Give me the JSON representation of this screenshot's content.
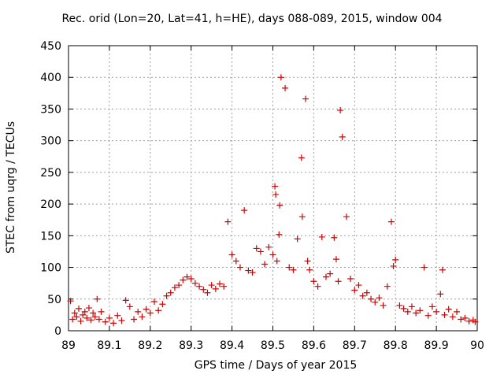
{
  "chart_data": {
    "type": "scatter",
    "title": "Rec. orid (Lon=20, Lat=41, h=HE), days 088-089, 2015, window 004",
    "xlabel": "GPS time / Days of year 2015",
    "ylabel": "STEC from uqrg / TECUs",
    "xlim": [
      89,
      90
    ],
    "ylim": [
      0,
      450
    ],
    "xticks": [
      "89",
      "89.1",
      "89.2",
      "89.3",
      "89.4",
      "89.5",
      "89.6",
      "89.7",
      "89.8",
      "89.9",
      "90"
    ],
    "yticks": [
      "0",
      "50",
      "100",
      "150",
      "200",
      "250",
      "300",
      "350",
      "400",
      "450"
    ],
    "xtick_values": [
      89,
      89.1,
      89.2,
      89.3,
      89.4,
      89.5,
      89.6,
      89.7,
      89.8,
      89.9,
      90
    ],
    "ytick_values": [
      0,
      50,
      100,
      150,
      200,
      250,
      300,
      350,
      400,
      450
    ],
    "grid": true,
    "marker": "+",
    "color": "#d40000",
    "series": [
      {
        "points": [
          [
            89.005,
            47
          ],
          [
            89.01,
            18
          ],
          [
            89.015,
            28
          ],
          [
            89.02,
            22
          ],
          [
            89.025,
            35
          ],
          [
            89.03,
            15
          ],
          [
            89.035,
            25
          ],
          [
            89.04,
            30
          ],
          [
            89.045,
            20
          ],
          [
            89.05,
            36
          ],
          [
            89.055,
            17
          ],
          [
            89.06,
            28
          ],
          [
            89.065,
            22
          ],
          [
            89.07,
            50
          ],
          [
            89.075,
            18
          ],
          [
            89.08,
            30
          ],
          [
            89.09,
            14
          ],
          [
            89.1,
            20
          ],
          [
            89.11,
            12
          ],
          [
            89.12,
            24
          ],
          [
            89.13,
            16
          ],
          [
            89.14,
            48
          ],
          [
            89.15,
            38
          ],
          [
            89.16,
            18
          ],
          [
            89.17,
            30
          ],
          [
            89.18,
            22
          ],
          [
            89.19,
            34
          ],
          [
            89.2,
            28
          ],
          [
            89.21,
            46
          ],
          [
            89.22,
            32
          ],
          [
            89.23,
            42
          ],
          [
            89.24,
            55
          ],
          [
            89.25,
            60
          ],
          [
            89.26,
            68
          ],
          [
            89.27,
            72
          ],
          [
            89.28,
            80
          ],
          [
            89.29,
            85
          ],
          [
            89.3,
            82
          ],
          [
            89.31,
            75
          ],
          [
            89.32,
            70
          ],
          [
            89.33,
            65
          ],
          [
            89.34,
            60
          ],
          [
            89.35,
            72
          ],
          [
            89.36,
            66
          ],
          [
            89.37,
            74
          ],
          [
            89.38,
            70
          ],
          [
            89.39,
            172
          ],
          [
            89.4,
            120
          ],
          [
            89.41,
            110
          ],
          [
            89.42,
            100
          ],
          [
            89.43,
            190
          ],
          [
            89.44,
            95
          ],
          [
            89.45,
            92
          ],
          [
            89.46,
            130
          ],
          [
            89.47,
            125
          ],
          [
            89.48,
            105
          ],
          [
            89.49,
            132
          ],
          [
            89.5,
            120
          ],
          [
            89.505,
            228
          ],
          [
            89.507,
            215
          ],
          [
            89.51,
            110
          ],
          [
            89.515,
            152
          ],
          [
            89.517,
            198
          ],
          [
            89.52,
            400
          ],
          [
            89.53,
            383
          ],
          [
            89.54,
            100
          ],
          [
            89.55,
            96
          ],
          [
            89.56,
            145
          ],
          [
            89.57,
            273
          ],
          [
            89.572,
            180
          ],
          [
            89.58,
            366
          ],
          [
            89.585,
            110
          ],
          [
            89.59,
            96
          ],
          [
            89.6,
            78
          ],
          [
            89.61,
            70
          ],
          [
            89.62,
            148
          ],
          [
            89.63,
            85
          ],
          [
            89.64,
            90
          ],
          [
            89.65,
            147
          ],
          [
            89.655,
            113
          ],
          [
            89.66,
            78
          ],
          [
            89.665,
            348
          ],
          [
            89.67,
            306
          ],
          [
            89.68,
            180
          ],
          [
            89.69,
            82
          ],
          [
            89.7,
            64
          ],
          [
            89.71,
            72
          ],
          [
            89.72,
            55
          ],
          [
            89.73,
            60
          ],
          [
            89.74,
            50
          ],
          [
            89.75,
            45
          ],
          [
            89.76,
            52
          ],
          [
            89.77,
            40
          ],
          [
            89.78,
            70
          ],
          [
            89.79,
            172
          ],
          [
            89.795,
            102
          ],
          [
            89.8,
            112
          ],
          [
            89.81,
            40
          ],
          [
            89.82,
            35
          ],
          [
            89.83,
            30
          ],
          [
            89.84,
            38
          ],
          [
            89.85,
            28
          ],
          [
            89.86,
            32
          ],
          [
            89.87,
            100
          ],
          [
            89.88,
            24
          ],
          [
            89.89,
            38
          ],
          [
            89.9,
            30
          ],
          [
            89.91,
            58
          ],
          [
            89.915,
            96
          ],
          [
            89.92,
            25
          ],
          [
            89.93,
            34
          ],
          [
            89.94,
            22
          ],
          [
            89.95,
            30
          ],
          [
            89.96,
            18
          ],
          [
            89.97,
            20
          ],
          [
            89.98,
            15
          ],
          [
            89.99,
            17
          ],
          [
            89.995,
            14
          ]
        ]
      }
    ]
  }
}
